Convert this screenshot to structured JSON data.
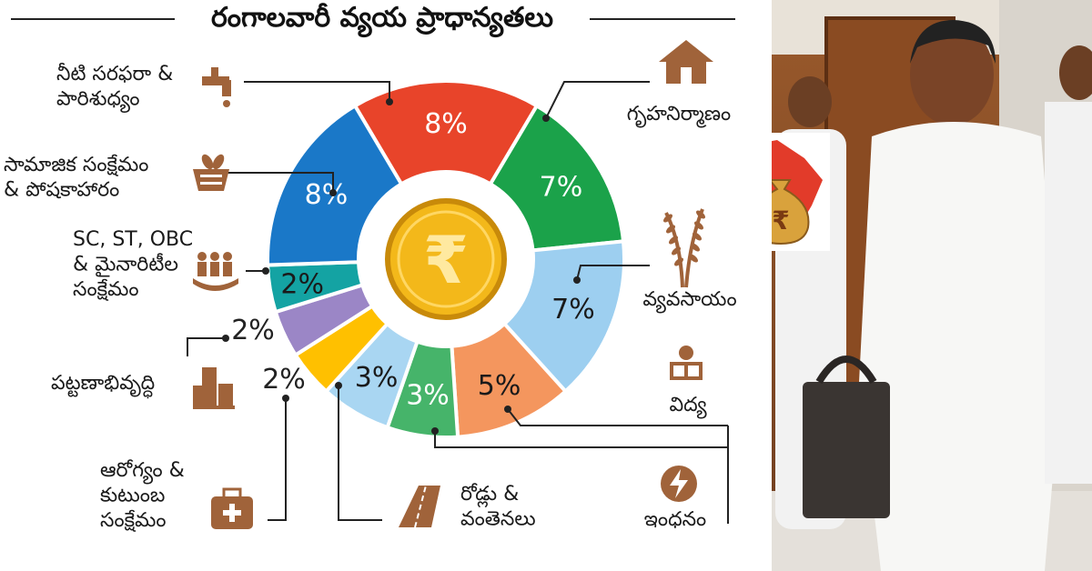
{
  "chart_data": {
    "type": "pie",
    "title": "రంగాలవారీ వ్యయ ప్రాధాన్యతలు",
    "slices": [
      {
        "label": "నీటి సరఫరా & పారిశుధ్యం",
        "value": 8,
        "value_label": "8%",
        "color": "#e8442a",
        "icon": "water-tap-icon"
      },
      {
        "label": "గృహనిర్మాణం",
        "value": 7,
        "value_label": "7%",
        "color": "#1ba24a",
        "icon": "house-icon"
      },
      {
        "label": "వ్యవసాయం",
        "value": 7,
        "value_label": "7%",
        "color": "#9dcff0",
        "icon": "wheat-icon"
      },
      {
        "label": "విద్య",
        "value": 5,
        "value_label": "5%",
        "color": "#f4965e",
        "icon": "student-reading-icon"
      },
      {
        "label": "ఇంధనం",
        "value": 3,
        "value_label": "3%",
        "color": "#46b46a",
        "icon": "lightning-icon"
      },
      {
        "label": "రోడ్లు & వంతెనలు",
        "value": 3,
        "value_label": "3%",
        "color": "#a9d6f2",
        "icon": "road-icon"
      },
      {
        "label": "ఆరోగ్యం & కుటుంబ సంక్షేమం",
        "value": 2,
        "value_label": "2%",
        "color": "#ffc000",
        "icon": "medical-kit-icon"
      },
      {
        "label": "పట్టణాభివృద్ధి",
        "value": 2,
        "value_label": "2%",
        "color": "#9b86c6",
        "icon": "buildings-icon"
      },
      {
        "label": "SC, ST, OBC & మైనారిటీల సంక్షేమం",
        "value": 2,
        "value_label": "2%",
        "color": "#14a3a3",
        "icon": "people-in-hand-icon"
      },
      {
        "label": "సామాజిక సంక్షేమం & పోషకాహారం",
        "value": 8,
        "value_label": "8%",
        "color": "#1a78c8",
        "icon": "food-basket-icon"
      }
    ],
    "center_icon": "rupee-coin-icon"
  },
  "colors": {
    "accent_brown": "#a0633a",
    "state_map": "#e23b2a",
    "money_bag": "#d9a23c"
  },
  "photo": {
    "icon": "telangana-map-money-bag-icon"
  }
}
